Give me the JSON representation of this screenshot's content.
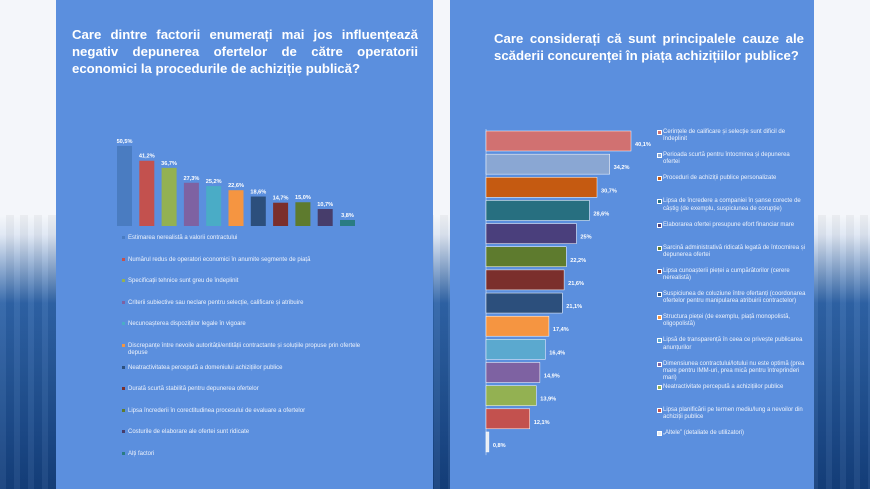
{
  "left_panel": {
    "title": "Care dintre factorii enumerați mai jos influențează negativ depunerea ofertelor de către operatorii economici la procedurile de achiziție publică?"
  },
  "right_panel": {
    "title": "Care considerați că sunt principalele cauze ale scăderii concurenței în piața achizițiilor publice?"
  },
  "colors": {
    "panel": "#5b8fde",
    "series": [
      "#4a7cc1",
      "#c3514e",
      "#93b152",
      "#7e62a2",
      "#4aacc6",
      "#f59541",
      "#2c4f7c",
      "#7b2f2c",
      "#5e7b2e",
      "#473d6b",
      "#2a7c83"
    ],
    "right_series": [
      "#d17171",
      "#8aa7d3",
      "#c55a11",
      "#276f80",
      "#4a3f7c",
      "#5e7b2e",
      "#7b2f2c",
      "#2c4f7c",
      "#f59541",
      "#5ba9cf",
      "#7e62a2",
      "#93b152",
      "#c3514e",
      "#e9edf3"
    ]
  },
  "chart_data": [
    {
      "type": "bar",
      "orientation": "vertical",
      "title": "",
      "ylim": [
        0,
        55
      ],
      "categories": [
        "Estimarea nerealistă a valorii contractului",
        "Numărul redus de operatori economici în anumite segmente de piață",
        "Specificații tehnice sunt greu de îndeplinit",
        "Criterii subiective sau neclare pentru selecție, calificare și atribuire",
        "Necunoașterea dispozițiilor legale în vigoare",
        "Discrepanțe între nevoile autorității/entității contractante și soluțiile propuse prin ofertele depuse",
        "Neatractivitatea percepută a domeniului achizițiilor publice",
        "Durată scurtă stabilită pentru depunerea ofertelor",
        "Lipsa încrederii în corectitudinea procesului de evaluare a ofertelor",
        "Costurile de elaborare ale ofertei sunt ridicate",
        "Alți factori"
      ],
      "values": [
        50.5,
        41.2,
        36.7,
        27.3,
        25.2,
        22.6,
        18.6,
        14.7,
        15.0,
        10.7,
        3.8
      ],
      "value_labels": [
        "50,5%",
        "41,2%",
        "36,7%",
        "27,3%",
        "25,2%",
        "22,6%",
        "18,6%",
        "14,7%",
        "15,0%",
        "10,7%",
        "3,8%"
      ]
    },
    {
      "type": "bar",
      "orientation": "horizontal",
      "title": "",
      "xlim": [
        0,
        45
      ],
      "categories": [
        "Cerințele de calificare și selecție sunt dificil de îndeplinit",
        "Perioada scurtă pentru întocmirea și depunerea ofertei",
        "Proceduri de achiziții publice personalizate",
        "Lipsa de încredere a companiei în șanse corecte de câștig (de exemplu, suspiciunea de corupție)",
        "Elaborarea ofertei presupune efort financiar mare",
        "Sarcină administrativă ridicată legată de întocmirea și depunerea ofertei",
        "Lipsa cunoașterii pieței a cumpărătorilor (cerere nerealistă)",
        "Suspiciunea de coluziune între ofertanți (coordonarea ofertelor pentru manipularea atribuirii contractelor)",
        "Structura pieței (de exemplu, piață monopolistă, oligopolistă)",
        "Lipsă de transparență în ceea ce privește publicarea anunțurilor",
        "Dimensiunea contractului/lotului nu este optimă (prea mare pentru IMM-uri, prea mică pentru întreprinderi mari)",
        "Neatractivitate percepută a achizițiilor publice",
        "Lipsa planificării pe termen mediu/lung a nevoilor din achiziții publice",
        "„Altele” (detaliate de utilizatori)"
      ],
      "values": [
        40.1,
        34.2,
        30.7,
        28.6,
        25.0,
        22.2,
        21.6,
        21.1,
        17.4,
        16.4,
        14.9,
        13.9,
        12.1,
        0.8
      ],
      "value_labels": [
        "40,1%",
        "34,2%",
        "30,7%",
        "28,6%",
        "25%",
        "22,2%",
        "21,6%",
        "21,1%",
        "17,4%",
        "16,4%",
        "14,9%",
        "13,9%",
        "12,1%",
        "0,8%"
      ]
    }
  ]
}
